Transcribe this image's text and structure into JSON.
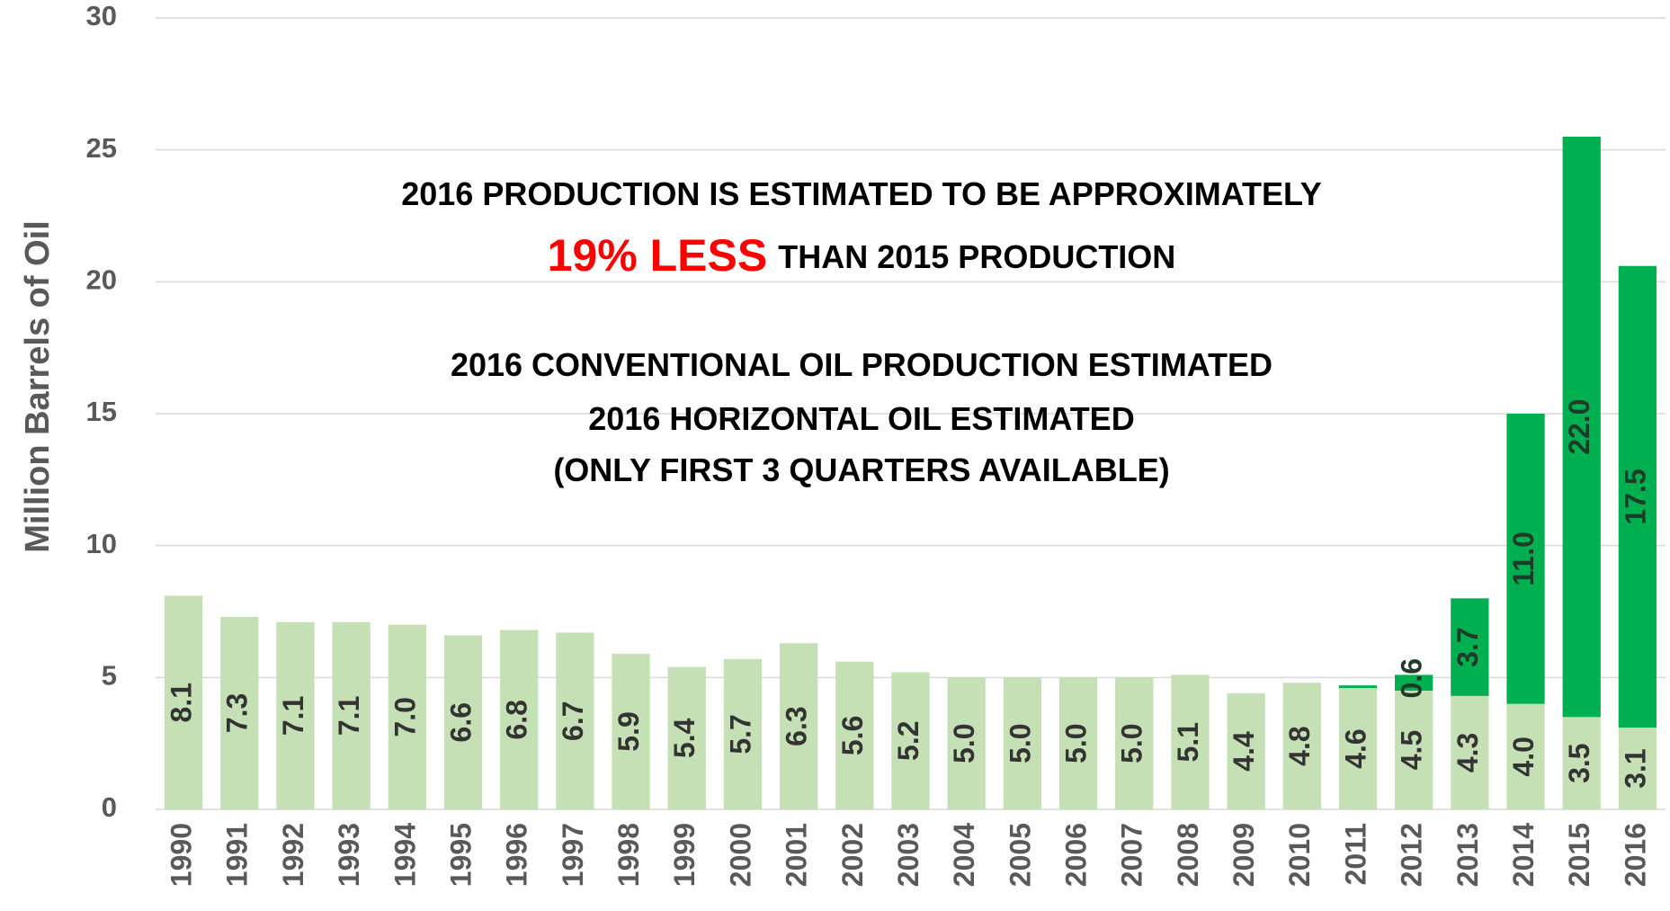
{
  "chart_data": {
    "type": "stacked_bar",
    "y_label": "Million Barrels of Oil",
    "annotations": [
      [
        {
          "text": "2016 PRODUCTION IS ESTIMATED TO BE APPROXIMATELY",
          "color": "#000000"
        }
      ],
      [
        {
          "text": "19% LESS",
          "color": "#ff0000"
        },
        {
          "text": "THAN 2015 PRODUCTION",
          "color": "#000000"
        }
      ],
      [
        {
          "text": "2016 CONVENTIONAL OIL PRODUCTION ESTIMATED",
          "color": "#000000"
        }
      ],
      [
        {
          "text": "2016 HORIZONTAL OIL ESTIMATED",
          "color": "#000000"
        }
      ],
      [
        {
          "text": "(ONLY FIRST 3 QUARTERS AVAILABLE)",
          "color": "#000000"
        }
      ]
    ],
    "categories": [
      "1990",
      "1991",
      "1992",
      "1993",
      "1994",
      "1995",
      "1996",
      "1997",
      "1998",
      "1999",
      "2000",
      "2001",
      "2002",
      "2003",
      "2004",
      "2005",
      "2006",
      "2007",
      "2008",
      "2009",
      "2010",
      "2011",
      "2012",
      "2013",
      "2014",
      "2015",
      "2016"
    ],
    "series": [
      {
        "name": "Conventional",
        "color": "#c5e0b4",
        "values": [
          8.1,
          7.3,
          7.1,
          7.1,
          7.0,
          6.6,
          6.8,
          6.7,
          5.9,
          5.4,
          5.7,
          6.3,
          5.6,
          5.2,
          5.0,
          5.0,
          5.0,
          5.0,
          5.1,
          4.4,
          4.8,
          4.6,
          4.5,
          4.3,
          4.0,
          3.5,
          3.1
        ],
        "value_labels": [
          "8.1",
          "7.3",
          "7.1",
          "7.1",
          "7.0",
          "6.6",
          "6.8",
          "6.7",
          "5.9",
          "5.4",
          "5.7",
          "6.3",
          "5.6",
          "5.2",
          "5.0",
          "5.0",
          "5.0",
          "5.0",
          "5.1",
          "4.4",
          "4.8",
          "4.6",
          "4.5",
          "4.3",
          "4.0",
          "3.5",
          "3.1"
        ]
      },
      {
        "name": "Horizontal",
        "color": "#00b050",
        "values": [
          null,
          null,
          null,
          null,
          null,
          null,
          null,
          null,
          null,
          null,
          null,
          null,
          null,
          null,
          null,
          null,
          null,
          null,
          null,
          null,
          null,
          0.1,
          0.6,
          3.7,
          11.0,
          22.0,
          17.5
        ],
        "value_labels": [
          null,
          null,
          null,
          null,
          null,
          null,
          null,
          null,
          null,
          null,
          null,
          null,
          null,
          null,
          null,
          null,
          null,
          null,
          null,
          null,
          null,
          null,
          "0.6",
          "3.7",
          "11.0",
          "22.0",
          "17.5"
        ]
      }
    ],
    "ylim": [
      0,
      30
    ],
    "yticks": [
      0,
      5,
      10,
      15,
      20,
      25,
      30
    ],
    "grid": true
  }
}
